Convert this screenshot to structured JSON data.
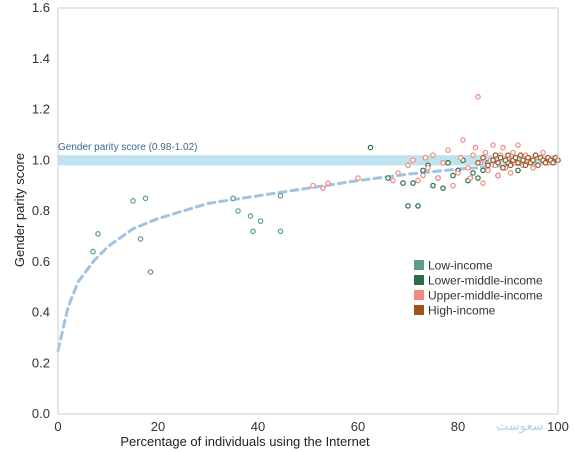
{
  "chart_data": {
    "type": "scatter",
    "title": "",
    "xlabel": "Percentage of individuals using the Internet",
    "ylabel": "Gender parity score",
    "xlim": [
      0,
      100
    ],
    "ylim": [
      0,
      1.6
    ],
    "x_ticks": [
      0,
      20,
      40,
      60,
      80,
      100
    ],
    "y_ticks": [
      0.0,
      0.2,
      0.4,
      0.6,
      0.8,
      1.0,
      1.2,
      1.4,
      1.6
    ],
    "y_tick_labels": [
      "0.0",
      "0.2",
      "0.4",
      "0.6",
      "0.8",
      "1.0",
      "1.2",
      "1.4",
      "1.6"
    ],
    "band": {
      "label": "Gender parity score (0.98-1.02)",
      "range": [
        0.98,
        1.02
      ],
      "color": "#bfe3ee"
    },
    "trend": {
      "color": "#9fc4e2",
      "style": "dashed",
      "points": [
        [
          0,
          0.25
        ],
        [
          2,
          0.42
        ],
        [
          4,
          0.52
        ],
        [
          7,
          0.6
        ],
        [
          10,
          0.66
        ],
        [
          15,
          0.73
        ],
        [
          20,
          0.77
        ],
        [
          30,
          0.83
        ],
        [
          40,
          0.86
        ],
        [
          50,
          0.89
        ],
        [
          60,
          0.92
        ],
        [
          70,
          0.945
        ],
        [
          80,
          0.965
        ],
        [
          90,
          0.98
        ],
        [
          100,
          0.995
        ]
      ]
    },
    "legend": {
      "placement": "middle-right",
      "entries": [
        "Low-income",
        "Lower-middle-income",
        "Upper-middle-income",
        "High-income"
      ]
    },
    "grid": false,
    "series": [
      {
        "name": "Low-income",
        "color": "#5f9e84",
        "points": [
          [
            7,
            0.64
          ],
          [
            8,
            0.71
          ],
          [
            15,
            0.84
          ],
          [
            16.5,
            0.69
          ],
          [
            17.5,
            0.85
          ],
          [
            18.5,
            0.56
          ],
          [
            35,
            0.85
          ],
          [
            36,
            0.8
          ],
          [
            38.5,
            0.78
          ],
          [
            39,
            0.72
          ],
          [
            40.5,
            0.76
          ],
          [
            44.5,
            0.72
          ],
          [
            44.5,
            0.86
          ]
        ]
      },
      {
        "name": "Lower-middle-income",
        "color": "#2e6b4a",
        "points": [
          [
            62.5,
            1.05
          ],
          [
            66,
            0.93
          ],
          [
            69,
            0.91
          ],
          [
            70,
            0.82
          ],
          [
            71,
            0.91
          ],
          [
            72,
            0.82
          ],
          [
            73,
            0.96
          ],
          [
            74,
            0.98
          ],
          [
            75,
            0.9
          ],
          [
            76,
            0.93
          ],
          [
            77,
            0.89
          ],
          [
            78,
            0.99
          ],
          [
            79,
            0.94
          ],
          [
            80,
            0.96
          ],
          [
            81,
            1.0
          ],
          [
            82,
            0.92
          ],
          [
            83,
            0.95
          ],
          [
            84,
            0.93
          ],
          [
            85,
            0.96
          ],
          [
            86,
            0.99
          ],
          [
            87,
            1.0
          ],
          [
            88,
            0.94
          ],
          [
            89,
            0.97
          ],
          [
            90,
            0.99
          ],
          [
            91,
            1.0
          ],
          [
            92,
            0.96
          ],
          [
            93,
            0.98
          ],
          [
            94,
            1.01
          ]
        ]
      },
      {
        "name": "Upper-middle-income",
        "color": "#f08a80",
        "points": [
          [
            51,
            0.9
          ],
          [
            53,
            0.89
          ],
          [
            54,
            0.91
          ],
          [
            60,
            0.93
          ],
          [
            67,
            0.92
          ],
          [
            68,
            0.95
          ],
          [
            70,
            0.98
          ],
          [
            71,
            1.0
          ],
          [
            72,
            0.92
          ],
          [
            73,
            0.94
          ],
          [
            73.5,
            1.01
          ],
          [
            74,
            0.97
          ],
          [
            75,
            1.02
          ],
          [
            76,
            0.93
          ],
          [
            77,
            0.99
          ],
          [
            78,
            1.04
          ],
          [
            79,
            0.9
          ],
          [
            80,
            0.95
          ],
          [
            80.5,
            1.01
          ],
          [
            81,
            1.08
          ],
          [
            82,
            0.97
          ],
          [
            82.5,
            0.93
          ],
          [
            83,
            1.02
          ],
          [
            83.5,
            1.05
          ],
          [
            84,
            1.25
          ],
          [
            84.5,
            0.99
          ],
          [
            85,
            0.91
          ],
          [
            85.5,
            1.03
          ],
          [
            86,
            0.96
          ],
          [
            86.5,
            1.0
          ],
          [
            87,
            1.06
          ],
          [
            87.5,
            0.98
          ],
          [
            88,
            0.94
          ],
          [
            88.5,
            1.02
          ],
          [
            89,
            1.05
          ],
          [
            89.5,
            0.97
          ],
          [
            90,
            1.01
          ],
          [
            90.5,
            0.95
          ],
          [
            91,
            1.03
          ],
          [
            91.5,
            0.99
          ],
          [
            92,
            1.06
          ],
          [
            93,
            0.98
          ],
          [
            93.5,
            1.02
          ],
          [
            94,
            1.0
          ],
          [
            95,
            0.97
          ],
          [
            96,
            1.01
          ],
          [
            97,
            1.03
          ],
          [
            98,
            0.99
          ],
          [
            99,
            1.0
          ]
        ]
      },
      {
        "name": "High-income",
        "color": "#a0531f",
        "points": [
          [
            84,
            0.99
          ],
          [
            85,
            1.01
          ],
          [
            86,
            0.98
          ],
          [
            87,
            1.0
          ],
          [
            87.5,
            1.02
          ],
          [
            88,
            0.99
          ],
          [
            88.5,
            1.01
          ],
          [
            89,
            0.97
          ],
          [
            89.5,
            1.0
          ],
          [
            90,
            1.02
          ],
          [
            90.5,
            0.98
          ],
          [
            91,
            1.0
          ],
          [
            91.5,
            1.01
          ],
          [
            92,
            0.99
          ],
          [
            92.5,
            1.02
          ],
          [
            93,
            1.0
          ],
          [
            93.5,
            0.98
          ],
          [
            94,
            1.01
          ],
          [
            94.5,
            0.99
          ],
          [
            95,
            1.0
          ],
          [
            95.5,
            1.02
          ],
          [
            96,
            0.98
          ],
          [
            96.5,
            1.01
          ],
          [
            97,
            1.0
          ],
          [
            97.5,
            0.99
          ],
          [
            98,
            1.01
          ],
          [
            98.5,
            1.0
          ],
          [
            99,
            0.99
          ],
          [
            99.5,
            1.01
          ],
          [
            100,
            1.0
          ]
        ]
      }
    ]
  },
  "watermark": "سعوست"
}
